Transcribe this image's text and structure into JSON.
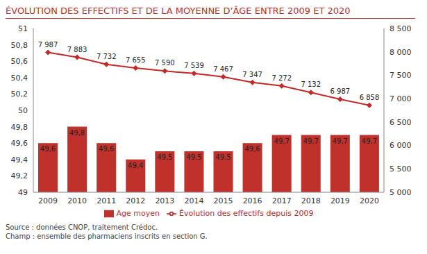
{
  "chart_data": {
    "type": "bar",
    "title": "ÉVOLUTION DES EFFECTIFS ET DE LA MOYENNE D’ÂGE ENTRE 2009 ET 2020",
    "categories": [
      "2009",
      "2010",
      "2011",
      "2012",
      "2013",
      "2014",
      "2015",
      "2016",
      "2017",
      "2018",
      "2019",
      "2020"
    ],
    "series": [
      {
        "name": "Age moyen",
        "type": "bar",
        "color": "#c0312b",
        "values": [
          49.6,
          49.8,
          49.6,
          49.4,
          49.5,
          49.5,
          49.5,
          49.6,
          49.7,
          49.7,
          49.7,
          49.7
        ],
        "value_labels": [
          "49,6",
          "49,8",
          "49,6",
          "49,4",
          "49,5",
          "49,5",
          "49,5",
          "49,6",
          "49,7",
          "49,7",
          "49,7",
          "49,7"
        ]
      },
      {
        "name": "Évolution des effectifs depuis 2009",
        "type": "line",
        "axis": "y2",
        "color": "#c62828",
        "marker": "diamond",
        "line_style": "solid",
        "values": [
          7987,
          7883,
          7732,
          7655,
          7590,
          7539,
          7467,
          7347,
          7272,
          7132,
          6987,
          6858
        ],
        "value_labels": [
          "7 987",
          "7 883",
          "7 732",
          "7 655",
          "7 590",
          "7 539",
          "7 467",
          "7 347",
          "7 272",
          "7 132",
          "6 987",
          "6 858"
        ]
      }
    ],
    "ylim": [
      49,
      51
    ],
    "yticks": [
      49,
      {
        "value": 49.2,
        "label": "49,2"
      },
      {
        "value": 49.4,
        "label": "49,4"
      },
      {
        "value": 49.6,
        "label": "49,6"
      },
      {
        "value": 49.8,
        "label": "49,8"
      },
      50,
      {
        "value": 50.2,
        "label": "50,2"
      },
      {
        "value": 50.4,
        "label": "50,4"
      },
      {
        "value": 50.6,
        "label": "50,6"
      },
      {
        "value": 50.8,
        "label": "50,8"
      },
      51
    ],
    "y2lim": [
      5000,
      8500
    ],
    "y2ticks": [
      {
        "value": 5000,
        "label": "5 000"
      },
      {
        "value": 5500,
        "label": "5 500"
      },
      {
        "value": 6000,
        "label": "6 000"
      },
      {
        "value": 6500,
        "label": "6 500"
      },
      {
        "value": 7000,
        "label": "7 000"
      },
      {
        "value": 7500,
        "label": "7 500"
      },
      {
        "value": 8000,
        "label": "8 000"
      },
      {
        "value": 8500,
        "label": "8 500"
      }
    ],
    "grid": false,
    "legend": "bottom",
    "data_labels": true,
    "annotations": [
      "Source : données CNOP, traitement Crédoc.",
      "Champ : ensemble des pharmaciens inscrits en section G."
    ]
  }
}
